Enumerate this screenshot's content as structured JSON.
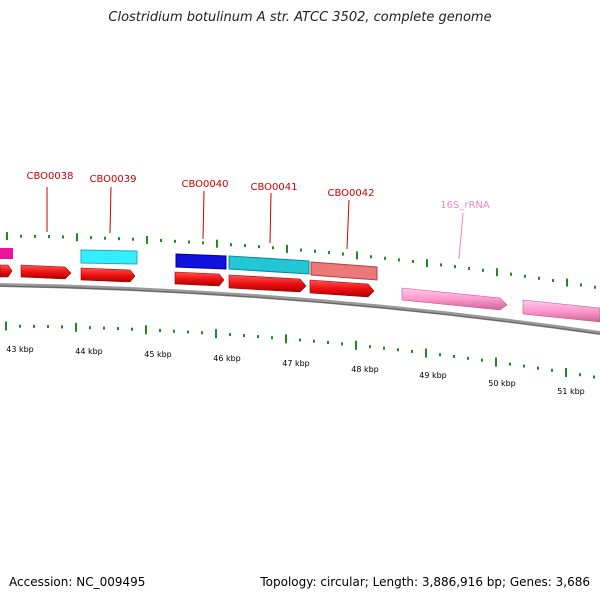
{
  "title": "Clostridium botulinum A str. ATCC 3502, complete genome",
  "accession_text": "Accession: NC_009495",
  "summary_text": "Topology: circular; Length: 3,886,916 bp; Genes: 3,686",
  "gene_labels": [
    {
      "name": "CBO0038",
      "color": "#cc0000"
    },
    {
      "name": "CBO0039",
      "color": "#cc0000"
    },
    {
      "name": "CBO0040",
      "color": "#cc0000"
    },
    {
      "name": "CBO0041",
      "color": "#cc0000"
    },
    {
      "name": "CBO0042",
      "color": "#cc0000"
    },
    {
      "name": "16S_rRNA",
      "color": "#ee88bb"
    }
  ],
  "kbp_labels": [
    "43 kbp",
    "44 kbp",
    "45 kbp",
    "46 kbp",
    "47 kbp",
    "48 kbp",
    "49 kbp",
    "50 kbp",
    "51 kbp"
  ],
  "colors": {
    "cds": "#ee1111",
    "magenta": "#ee1199",
    "cyan": "#22ddee",
    "teal": "#22bbcc",
    "blue": "#1111dd",
    "salmon": "#ee7777",
    "rrna": "#ff99cc",
    "tick": "#228822",
    "backbone": "#888888"
  }
}
